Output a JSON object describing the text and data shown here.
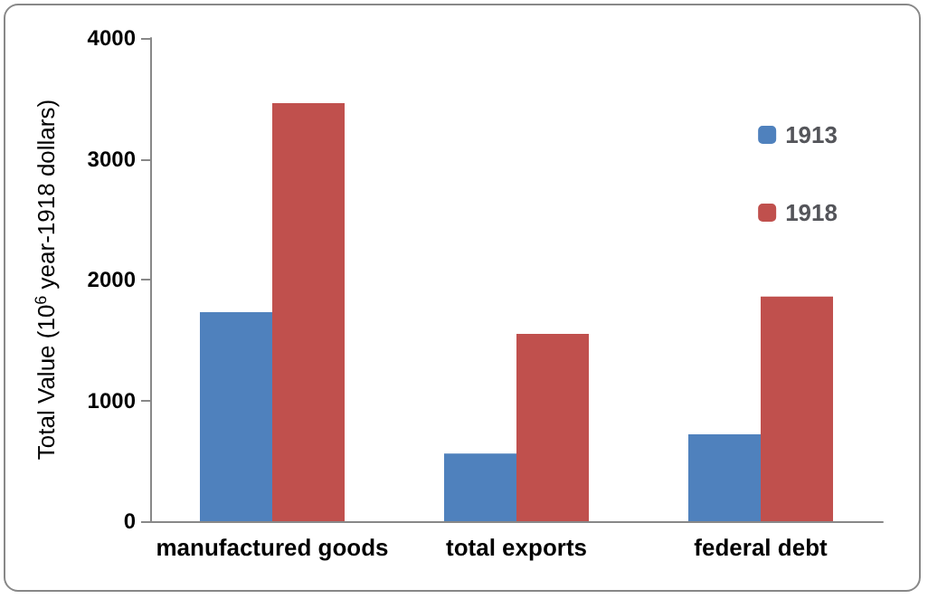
{
  "chart_data": {
    "type": "bar",
    "ylabel": "Total Value (10$^{6}$ year-1918 dollars)",
    "categories": [
      "manufactured goods",
      "total exports",
      "federal debt"
    ],
    "series": [
      {
        "name": "1913",
        "color": "#4f81bd",
        "values": [
          1730,
          560,
          720
        ]
      },
      {
        "name": "1918",
        "color": "#c0504d",
        "values": [
          3460,
          1550,
          1860
        ]
      }
    ],
    "ylim": [
      0,
      4000
    ],
    "yticks": [
      0,
      1000,
      2000,
      3000,
      4000
    ],
    "grid": false,
    "legend": "top right"
  }
}
